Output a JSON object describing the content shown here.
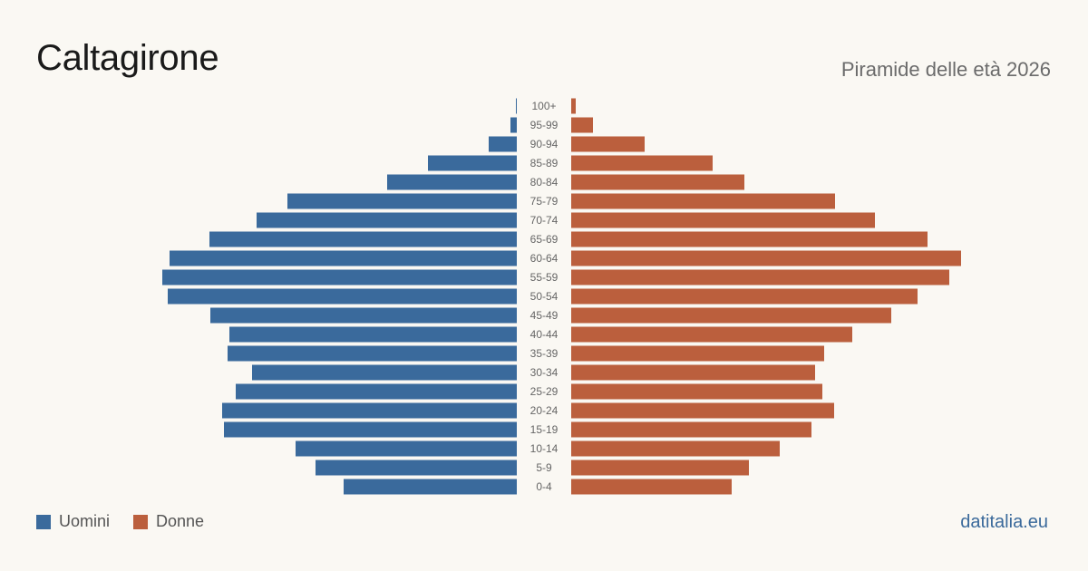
{
  "header": {
    "title": "Caltagirone",
    "subtitle": "Piramide delle età 2026"
  },
  "legend": {
    "men_label": "Uomini",
    "women_label": "Donne"
  },
  "footer": {
    "brand": "datitalia.eu"
  },
  "colors": {
    "men": "#3a6a9c",
    "women": "#bb5f3d"
  },
  "chart_data": {
    "type": "bar",
    "orientation": "horizontal-pyramid",
    "categories": [
      "0-4",
      "5-9",
      "10-14",
      "15-19",
      "20-24",
      "25-29",
      "30-34",
      "35-39",
      "40-44",
      "45-49",
      "50-54",
      "55-59",
      "60-64",
      "65-69",
      "70-74",
      "75-79",
      "80-84",
      "85-89",
      "90-94",
      "95-99",
      "100+"
    ],
    "series": [
      {
        "name": "Uomini",
        "values": [
          191,
          222,
          244,
          323,
          325,
          310,
          292,
          319,
          317,
          338,
          385,
          391,
          383,
          339,
          287,
          253,
          143,
          98,
          31,
          7,
          1
        ]
      },
      {
        "name": "Donne",
        "values": [
          177,
          196,
          230,
          265,
          290,
          277,
          269,
          279,
          310,
          353,
          382,
          417,
          430,
          393,
          335,
          291,
          191,
          156,
          81,
          24,
          5
        ]
      }
    ],
    "xlim": [
      0,
      440
    ]
  }
}
